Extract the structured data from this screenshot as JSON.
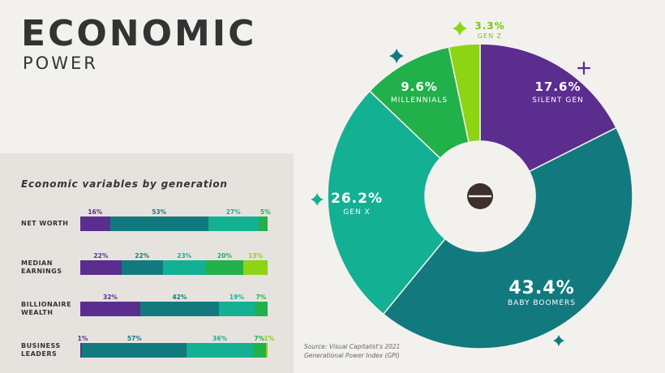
{
  "title": "ECONOMIC",
  "subtitle": "POWER",
  "colors": {
    "silent": "#5a2d8e",
    "boomers": "#127a7e",
    "genx": "#14b094",
    "millennials": "#22b04b",
    "genz": "#8cd414",
    "text": "#333333"
  },
  "chart_data": [
    {
      "type": "pie",
      "title": "",
      "labels": [
        "SILENT GEN",
        "BABY BOOMERS",
        "GEN X",
        "MILLENNIALS",
        "GEN Z"
      ],
      "values": [
        17.6,
        43.4,
        26.2,
        9.6,
        3.3
      ],
      "value_labels": [
        "17.6%",
        "43.4%",
        "26.2%",
        "9.6%",
        "3.3%"
      ],
      "colors": [
        "#5a2d8e",
        "#127a7e",
        "#14b094",
        "#22b04b",
        "#8cd414"
      ]
    },
    {
      "type": "bar",
      "stacked": true,
      "orientation": "horizontal",
      "title": "Economic variables by generation",
      "categories": [
        "NET WORTH",
        "MEDIAN EARNINGS",
        "BILLIONAIRE WEALTH",
        "BUSINESS LEADERS"
      ],
      "category_lines": [
        [
          "NET WORTH"
        ],
        [
          "MEDIAN",
          "EARNINGS"
        ],
        [
          "BILLIONAIRE",
          "WEALTH"
        ],
        [
          "BUSINESS",
          "LEADERS"
        ]
      ],
      "series_colors": [
        "#5a2d8e",
        "#127a7e",
        "#14b094",
        "#22b04b",
        "#8cd414"
      ],
      "rows": [
        {
          "values": [
            16,
            53,
            27,
            5,
            0
          ],
          "labels": [
            "16%",
            "53%",
            "27%",
            "5%",
            ""
          ]
        },
        {
          "values": [
            22,
            22,
            23,
            20,
            13
          ],
          "labels": [
            "22%",
            "22%",
            "23%",
            "20%",
            "13%"
          ]
        },
        {
          "values": [
            32,
            42,
            19,
            7,
            0
          ],
          "labels": [
            "32%",
            "42%",
            "19%",
            "7%",
            ""
          ]
        },
        {
          "values": [
            1,
            57,
            36,
            7,
            1
          ],
          "labels": [
            "1%",
            "57%",
            "36%",
            "7%",
            "1%"
          ]
        }
      ]
    }
  ],
  "source_line1": "Source: Visual Capitalist's 2021",
  "source_line2": "Generational Power Index (GPI)"
}
